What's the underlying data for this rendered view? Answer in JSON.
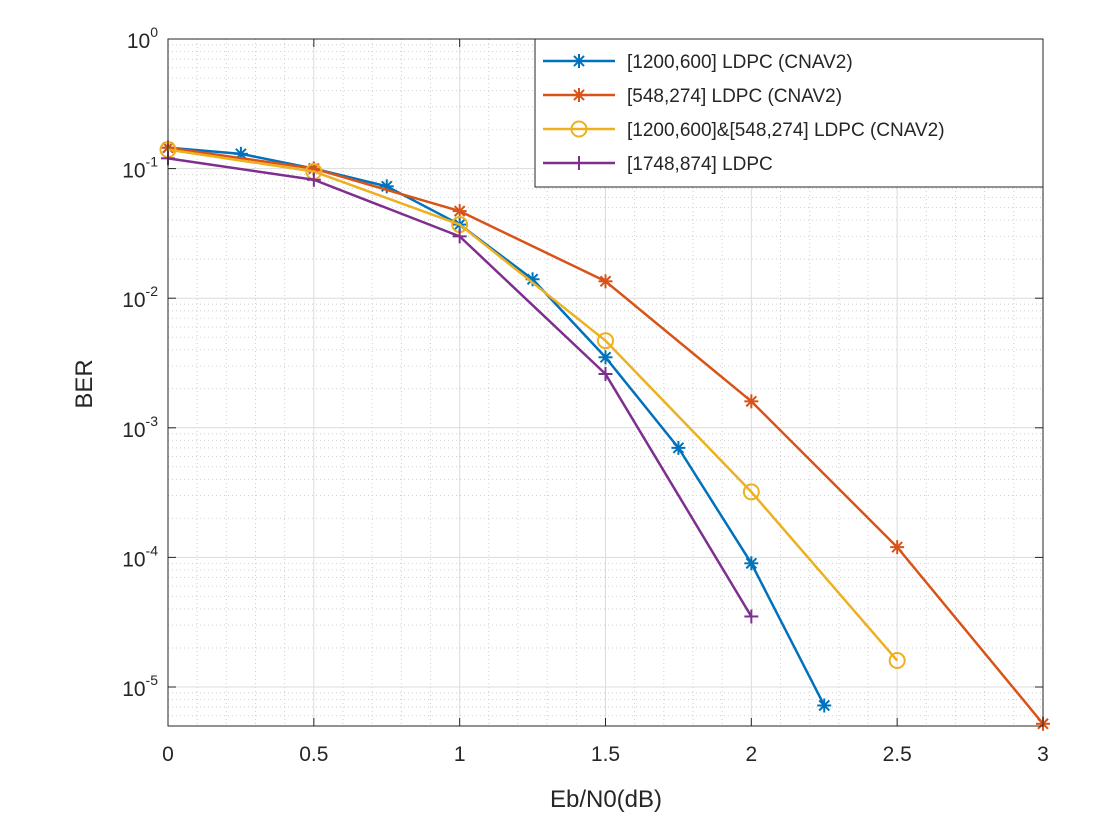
{
  "chart_data": {
    "type": "line",
    "xlabel": "Eb/N0(dB)",
    "ylabel": "BER",
    "yscale": "log",
    "xlim": [
      0,
      3
    ],
    "ylim": [
      5e-06,
      1
    ],
    "grid": true,
    "minor_grid": true,
    "legend_location": "top-right",
    "x_ticks": [
      {
        "value": 0,
        "label": "0"
      },
      {
        "value": 0.5,
        "label": "0.5"
      },
      {
        "value": 1,
        "label": "1"
      },
      {
        "value": 1.5,
        "label": "1.5"
      },
      {
        "value": 2,
        "label": "2"
      },
      {
        "value": 2.5,
        "label": "2.5"
      },
      {
        "value": 3,
        "label": "3"
      }
    ],
    "y_ticks": [
      {
        "value": 1,
        "base": "10",
        "exp": "0"
      },
      {
        "value": 0.1,
        "base": "10",
        "exp": "-1"
      },
      {
        "value": 0.01,
        "base": "10",
        "exp": "-2"
      },
      {
        "value": 0.001,
        "base": "10",
        "exp": "-3"
      },
      {
        "value": 0.0001,
        "base": "10",
        "exp": "-4"
      },
      {
        "value": 1e-05,
        "base": "10",
        "exp": "-5"
      }
    ],
    "series": [
      {
        "name": "[1200,600] LDPC (CNAV2)",
        "color": "#0072BD",
        "marker": "asterisk",
        "x": [
          0,
          0.25,
          0.5,
          0.75,
          1,
          1.25,
          1.5,
          1.75,
          2,
          2.25
        ],
        "y": [
          0.145,
          0.13,
          0.1,
          0.073,
          0.037,
          0.014,
          0.0035,
          0.0007,
          9e-05,
          7.2e-06
        ]
      },
      {
        "name": "[548,274] LDPC (CNAV2)",
        "color": "#D95319",
        "marker": "asterisk",
        "x": [
          0,
          0.5,
          1,
          1.5,
          2,
          2.5,
          3
        ],
        "y": [
          0.145,
          0.1,
          0.047,
          0.0135,
          0.0016,
          0.00012,
          5.2e-06
        ]
      },
      {
        "name": "[1200,600]&[548,274] LDPC (CNAV2)",
        "color": "#EDB120",
        "marker": "circle",
        "x": [
          0,
          0.5,
          1,
          1.5,
          2,
          2.5
        ],
        "y": [
          0.14,
          0.095,
          0.037,
          0.0047,
          0.00032,
          1.6e-05
        ]
      },
      {
        "name": "[1748,874] LDPC",
        "color": "#7E2F8E",
        "marker": "plus",
        "x": [
          0,
          0.5,
          1,
          1.5,
          2
        ],
        "y": [
          0.12,
          0.082,
          0.03,
          0.0026,
          3.5e-05
        ]
      }
    ]
  }
}
